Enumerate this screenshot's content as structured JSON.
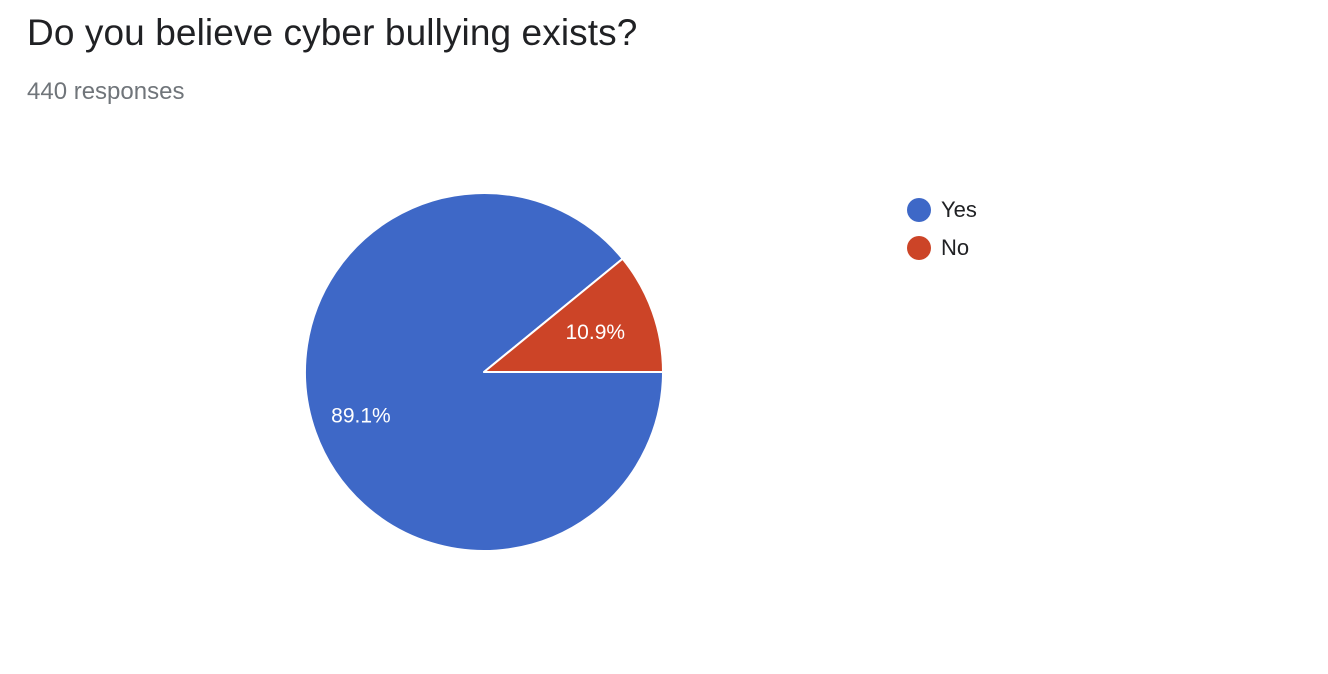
{
  "question": {
    "title": "Do you believe cyber bullying exists?",
    "responses": "440 responses"
  },
  "colors": {
    "yes": "#3e68c7",
    "no": "#cc4427"
  },
  "chart_data": {
    "type": "pie",
    "title": "Do you believe cyber bullying exists?",
    "subtitle": "440 responses",
    "categories": [
      "Yes",
      "No"
    ],
    "values": [
      89.1,
      10.9
    ],
    "labels": [
      "89.1%",
      "10.9%"
    ],
    "colors": [
      "#3e68c7",
      "#cc4427"
    ],
    "legend_position": "right"
  }
}
